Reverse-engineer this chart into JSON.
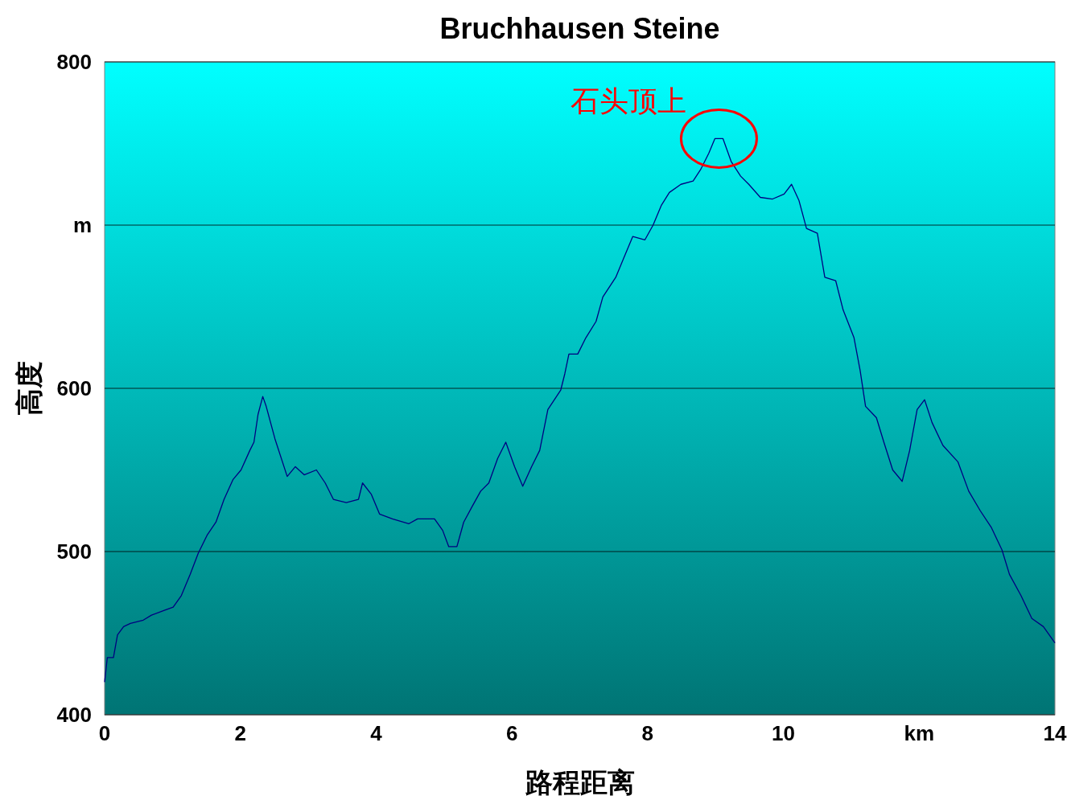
{
  "chart_data": {
    "type": "line",
    "title": "Bruchhausen Steine",
    "xlabel": "路程距离",
    "ylabel": "高度",
    "xlim": [
      0,
      14
    ],
    "xticks": [
      0,
      2,
      4,
      6,
      8,
      10,
      {
        "value": 12,
        "label": "km"
      },
      14
    ],
    "ylim": [
      400,
      800
    ],
    "yticks": [
      400,
      500,
      600,
      {
        "value": 700,
        "label": "m"
      },
      800
    ],
    "grid": "y",
    "marker": "none",
    "line_style": "solid",
    "annotations": [
      {
        "text": "石头顶上",
        "x": 9.05,
        "y": 753
      }
    ],
    "series": [
      {
        "color": "#000080",
        "x": [
          0,
          0.04,
          0.13,
          0.19,
          0.28,
          0.38,
          0.57,
          0.69,
          0.88,
          1.01,
          1.13,
          1.26,
          1.38,
          1.51,
          1.64,
          1.76,
          1.89,
          2.01,
          2.14,
          2.2,
          2.26,
          2.33,
          2.38,
          2.51,
          2.69,
          2.81,
          2.94,
          3.12,
          3.25,
          3.37,
          3.56,
          3.74,
          3.8,
          3.93,
          4.05,
          4.24,
          4.48,
          4.61,
          4.86,
          4.98,
          5.07,
          5.19,
          5.29,
          5.42,
          5.54,
          5.66,
          5.79,
          5.91,
          6.04,
          6.16,
          6.29,
          6.41,
          6.53,
          6.72,
          6.78,
          6.84,
          6.97,
          7.09,
          7.24,
          7.34,
          7.53,
          7.65,
          7.78,
          7.96,
          8.08,
          8.2,
          8.32,
          8.49,
          8.67,
          8.78,
          8.9,
          8.99,
          9.11,
          9.23,
          9.37,
          9.49,
          9.66,
          9.84,
          10.01,
          10.12,
          10.23,
          10.34,
          10.5,
          10.61,
          10.77,
          10.88,
          11.04,
          11.13,
          11.21,
          11.37,
          11.48,
          11.61,
          11.75,
          11.86,
          11.97,
          12.08,
          12.19,
          12.35,
          12.57,
          12.73,
          12.9,
          13.06,
          13.22,
          13.33,
          13.5,
          13.66,
          13.83,
          14
        ],
        "values": [
          420,
          435,
          435,
          449,
          454,
          456,
          458,
          461,
          464,
          466,
          473,
          486,
          499,
          510,
          518,
          532,
          544,
          550,
          562,
          567,
          584,
          595,
          589,
          569,
          546,
          552,
          547,
          550,
          542,
          532,
          530,
          532,
          542,
          535,
          523,
          520,
          517,
          520,
          520,
          513,
          503,
          503,
          518,
          528,
          537,
          542,
          557,
          567,
          552,
          540,
          552,
          562,
          587,
          599,
          609,
          621,
          621,
          631,
          641,
          656,
          668,
          680,
          693,
          691,
          700,
          712,
          720,
          725,
          727,
          734,
          744,
          753,
          753,
          739,
          730,
          725,
          717,
          716,
          719,
          725,
          715,
          698,
          695,
          668,
          666,
          648,
          631,
          611,
          589,
          582,
          567,
          550,
          543,
          562,
          587,
          593,
          579,
          565,
          555,
          537,
          525,
          515,
          501,
          486,
          473,
          459,
          454,
          444
        ]
      }
    ]
  }
}
